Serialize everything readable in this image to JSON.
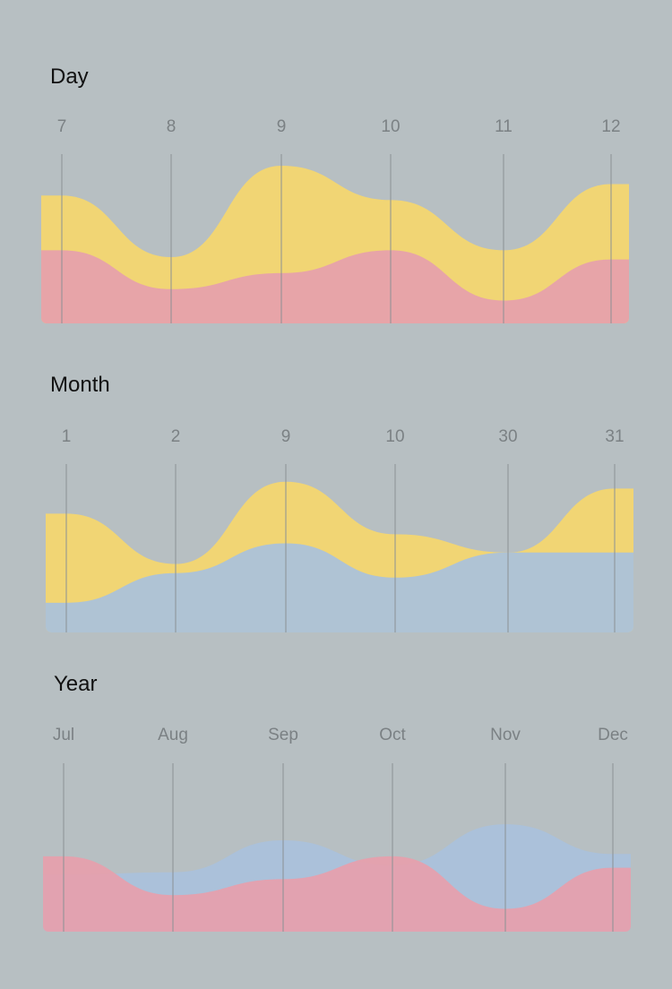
{
  "colors": {
    "background": "#b7bfc2",
    "yellow": "#f5d76e",
    "pink": "#e6a0ac",
    "blue": "#a9c1dc",
    "gridline": "#8b9194",
    "tick_text": "#7b8184"
  },
  "chart_data": [
    {
      "type": "area",
      "title": "Day",
      "categories": [
        "7",
        "8",
        "9",
        "10",
        "11",
        "12"
      ],
      "stacked": true,
      "series": [
        {
          "color": "yellow",
          "values": [
            2.4,
            1.4,
            4.7,
            2.2,
            2.2,
            3.3
          ]
        },
        {
          "color": "pink",
          "values": [
            3.2,
            1.5,
            2.2,
            3.2,
            1.0,
            2.8
          ]
        }
      ],
      "ylim": [
        0,
        7.5
      ],
      "grid": "vertical"
    },
    {
      "type": "area",
      "title": "Month",
      "categories": [
        "1",
        "2",
        "9",
        "10",
        "30",
        "31"
      ],
      "stacked": false,
      "series": [
        {
          "color": "yellow",
          "values": [
            5.2,
            3.0,
            6.6,
            4.3,
            3.5,
            6.3
          ]
        },
        {
          "color": "blue",
          "values": [
            1.3,
            2.6,
            3.9,
            2.4,
            3.5,
            3.5
          ]
        }
      ],
      "ylim": [
        0,
        7.5
      ],
      "grid": "vertical"
    },
    {
      "type": "area",
      "title": "Year",
      "categories": [
        "Jul",
        "Aug",
        "Sep",
        "Oct",
        "Nov",
        "Dec"
      ],
      "stacked": false,
      "series": [
        {
          "color": "blue",
          "values": [
            2.5,
            2.6,
            4.0,
            2.9,
            4.7,
            3.4
          ]
        },
        {
          "color": "pink",
          "values": [
            3.3,
            1.6,
            2.3,
            3.3,
            1.0,
            2.8
          ]
        }
      ],
      "ylim": [
        0,
        7.5
      ],
      "grid": "vertical"
    }
  ]
}
